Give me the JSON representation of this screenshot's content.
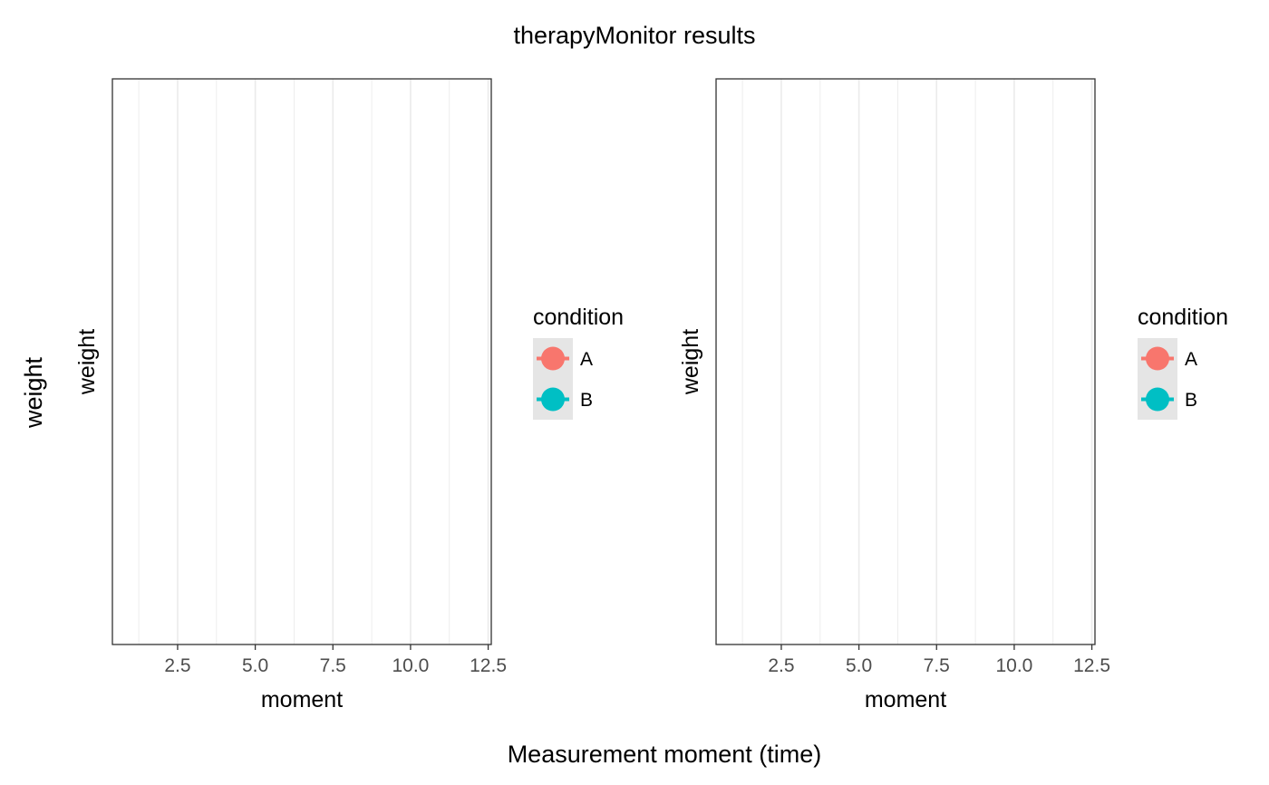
{
  "figure": {
    "title": "therapyMonitor results",
    "xlabel": "Measurement moment (time)",
    "ylabel": "weight"
  },
  "colors": {
    "A": "#F8766D",
    "B": "#00BFC4",
    "grid": "#ebebeb",
    "legend_key_bg": "#e5e5e5",
    "tick_text": "#4d4d4d"
  },
  "chart_data": [
    {
      "type": "line",
      "title": "",
      "xlabel": "moment",
      "ylabel": "weight",
      "xlim": [
        0.4,
        12.6
      ],
      "x_ticks": [
        2.5,
        5.0,
        7.5,
        10.0,
        12.5
      ],
      "x_tick_labels": [
        "2.5",
        "5.0",
        "7.5",
        "10.0",
        "12.5"
      ],
      "y_tick_labels": [],
      "grid": true,
      "legend": {
        "title": "condition",
        "position": "right",
        "entries": [
          {
            "label": "A",
            "color": "#F8766D"
          },
          {
            "label": "B",
            "color": "#00BFC4"
          }
        ]
      },
      "series": []
    },
    {
      "type": "line",
      "title": "",
      "xlabel": "moment",
      "ylabel": "weight",
      "xlim": [
        0.4,
        12.6
      ],
      "x_ticks": [
        2.5,
        5.0,
        7.5,
        10.0,
        12.5
      ],
      "x_tick_labels": [
        "2.5",
        "5.0",
        "7.5",
        "10.0",
        "12.5"
      ],
      "y_tick_labels": [],
      "grid": true,
      "legend": {
        "title": "condition",
        "position": "right",
        "entries": [
          {
            "label": "A",
            "color": "#F8766D"
          },
          {
            "label": "B",
            "color": "#00BFC4"
          }
        ]
      },
      "series": []
    }
  ]
}
